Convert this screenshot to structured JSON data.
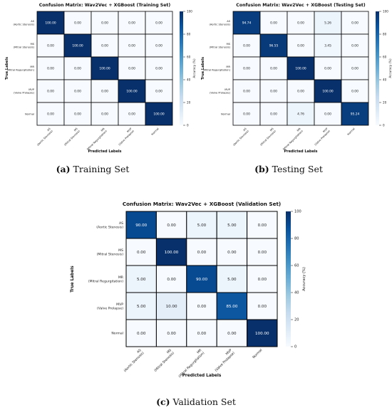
{
  "subfigures": [
    {
      "tag": "(a)",
      "label": "Training Set"
    },
    {
      "tag": "(b)",
      "label": "Testing Set"
    },
    {
      "tag": "(c)",
      "label": "Validation Set"
    }
  ],
  "chart_data": [
    {
      "type": "heatmap",
      "title": "Confusion Matrix: Wav2Vec + XGBoost (Training Set)",
      "xlabel": "Predicted Labels",
      "ylabel": "True Labels",
      "colorbar_label": "Accuracy (%)",
      "colorbar_ticks": [
        0,
        20,
        40,
        60,
        80,
        100
      ],
      "zlim": [
        0,
        100
      ],
      "row_labels": [
        [
          "AS",
          "(Aortic Stenosis)"
        ],
        [
          "MS",
          "(Mitral Stenosis)"
        ],
        [
          "MR",
          "(Mitral Regurgitation)"
        ],
        [
          "MVP",
          "(Valve Prolapse)"
        ],
        [
          "Normal"
        ]
      ],
      "col_labels": [
        [
          "AS",
          "(Aortic Stenosis)"
        ],
        [
          "MS",
          "(Mitral Stenosis)"
        ],
        [
          "MR",
          "(Mitral Regurgitation)"
        ],
        [
          "MVP",
          "(Valve Prolapse)"
        ],
        [
          "Normal"
        ]
      ],
      "values": [
        [
          100,
          0,
          0,
          0,
          0
        ],
        [
          0,
          100,
          0,
          0,
          0
        ],
        [
          0,
          0,
          100,
          0,
          0
        ],
        [
          0,
          0,
          0,
          100,
          0
        ],
        [
          0,
          0,
          0,
          0,
          100
        ]
      ]
    },
    {
      "type": "heatmap",
      "title": "Confusion Matrix: Wav2Vec + XGBoost (Testing Set)",
      "xlabel": "Predicted Labels",
      "ylabel": "True Labels",
      "colorbar_label": "Accuracy (%)",
      "colorbar_ticks": [
        0,
        20,
        40,
        60,
        80,
        100
      ],
      "zlim": [
        0,
        100
      ],
      "row_labels": [
        [
          "AS",
          "(Aortic Stenosis)"
        ],
        [
          "MS",
          "(Mitral Stenosis)"
        ],
        [
          "MR",
          "(Mitral Regurgitation)"
        ],
        [
          "MVP",
          "(Valve Prolapse)"
        ],
        [
          "Normal"
        ]
      ],
      "col_labels": [
        [
          "AS",
          "(Aortic Stenosis)"
        ],
        [
          "MS",
          "(Mitral Stenosis)"
        ],
        [
          "MR",
          "(Mitral Regurgitation)"
        ],
        [
          "MVP",
          "(Valve Prolapse)"
        ],
        [
          "Normal"
        ]
      ],
      "values": [
        [
          94.74,
          0,
          0,
          5.26,
          0
        ],
        [
          0,
          96.55,
          0,
          3.45,
          0
        ],
        [
          0,
          0,
          100,
          0,
          0
        ],
        [
          0,
          0,
          0,
          100,
          0
        ],
        [
          0,
          0,
          4.76,
          0,
          95.24
        ]
      ]
    },
    {
      "type": "heatmap",
      "title": "Confusion Matrix: Wav2Vec + XGBoost (Validation Set)",
      "xlabel": "Predicted Labels",
      "ylabel": "True Labels",
      "colorbar_label": "Accuracy (%)",
      "colorbar_ticks": [
        0,
        20,
        40,
        60,
        80,
        100
      ],
      "zlim": [
        0,
        100
      ],
      "row_labels": [
        [
          "AS",
          "(Aortic Stenosis)"
        ],
        [
          "MS",
          "(Mitral Stenosis)"
        ],
        [
          "MR",
          "(Mitral Regurgitation)"
        ],
        [
          "MVP",
          "(Valve Prolapse)"
        ],
        [
          "Normal"
        ]
      ],
      "col_labels": [
        [
          "AS",
          "(Aortic Stenosis)"
        ],
        [
          "MS",
          "(Mitral Stenosis)"
        ],
        [
          "MR",
          "(Mitral Regurgitation)"
        ],
        [
          "MVP",
          "(Valve Prolapse)"
        ],
        [
          "Normal"
        ]
      ],
      "values": [
        [
          90,
          0,
          5,
          5,
          0
        ],
        [
          0,
          100,
          0,
          0,
          0
        ],
        [
          5,
          0,
          90,
          5,
          0
        ],
        [
          5,
          10,
          0,
          85,
          0
        ],
        [
          0,
          0,
          0,
          0,
          100
        ]
      ]
    }
  ]
}
